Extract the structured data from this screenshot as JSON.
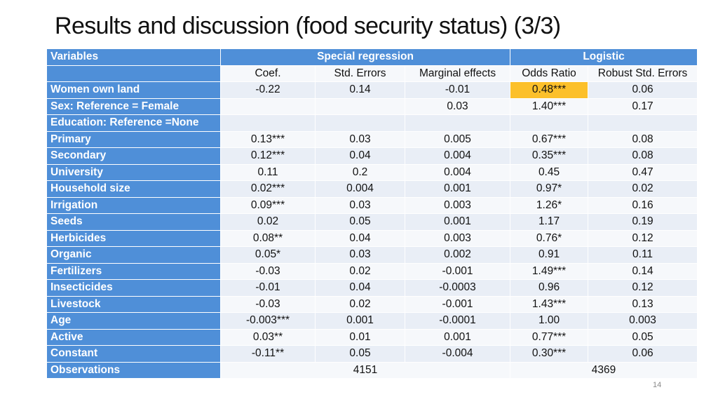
{
  "title": "Results and discussion (food security status) (3/3)",
  "page_number": "14",
  "colors": {
    "header_blue": "#4f8fd8",
    "highlight": "#fcc02a",
    "row_light": "#e9eef6",
    "row_lighter": "#f6f8fb"
  },
  "table": {
    "header": {
      "variables": "Variables",
      "special": "Special regression",
      "logistic": "Logistic"
    },
    "subheader": [
      "Coef.",
      "Std. Errors",
      "Marginal effects",
      "Odds Ratio",
      "Robust Std. Errors"
    ],
    "rows": [
      {
        "label": "Women own land",
        "cells": [
          "-0.22",
          "0.14",
          "-0.01",
          "0.48***",
          "0.06"
        ]
      },
      {
        "label": "Sex: Reference = Female",
        "cells": [
          "",
          "",
          "0.03",
          "1.40***",
          "0.17"
        ]
      },
      {
        "label": "Education: Reference =None",
        "cells": [
          "",
          "",
          "",
          "",
          ""
        ]
      },
      {
        "label": "Primary",
        "cells": [
          "0.13***",
          "0.03",
          "0.005",
          "0.67***",
          "0.08"
        ]
      },
      {
        "label": "Secondary",
        "cells": [
          "0.12***",
          "0.04",
          "0.004",
          "0.35***",
          "0.08"
        ]
      },
      {
        "label": "University",
        "cells": [
          "0.11",
          "0.2",
          "0.004",
          "0.45",
          "0.47"
        ]
      },
      {
        "label": "Household size",
        "cells": [
          "0.02***",
          "0.004",
          "0.001",
          "0.97*",
          "0.02"
        ]
      },
      {
        "label": "Irrigation",
        "cells": [
          "0.09***",
          "0.03",
          "0.003",
          "1.26*",
          "0.16"
        ]
      },
      {
        "label": "Seeds",
        "cells": [
          "0.02",
          "0.05",
          "0.001",
          "1.17",
          "0.19"
        ]
      },
      {
        "label": "Herbicides",
        "cells": [
          "0.08**",
          "0.04",
          "0.003",
          "0.76*",
          "0.12"
        ]
      },
      {
        "label": "Organic",
        "cells": [
          "0.05*",
          "0.03",
          "0.002",
          "0.91",
          "0.11"
        ]
      },
      {
        "label": "Fertilizers",
        "cells": [
          "-0.03",
          "0.02",
          "-0.001",
          "1.49***",
          "0.14"
        ]
      },
      {
        "label": "Insecticides",
        "cells": [
          "-0.01",
          "0.04",
          "-0.0003",
          "0.96",
          "0.12"
        ]
      },
      {
        "label": "Livestock",
        "cells": [
          "-0.03",
          "0.02",
          "-0.001",
          "1.43***",
          "0.13"
        ]
      },
      {
        "label": "Age",
        "cells": [
          "-0.003***",
          "0.001",
          "-0.0001",
          "1.00",
          "0.003"
        ]
      },
      {
        "label": "Active",
        "cells": [
          "0.03**",
          "0.01",
          "0.001",
          "0.77***",
          "0.05"
        ]
      },
      {
        "label": "Constant",
        "cells": [
          "-0.11**",
          "0.05",
          "-0.004",
          "0.30***",
          "0.06"
        ]
      }
    ],
    "observations": {
      "label": "Observations",
      "special": "4151",
      "logistic": "4369"
    }
  }
}
